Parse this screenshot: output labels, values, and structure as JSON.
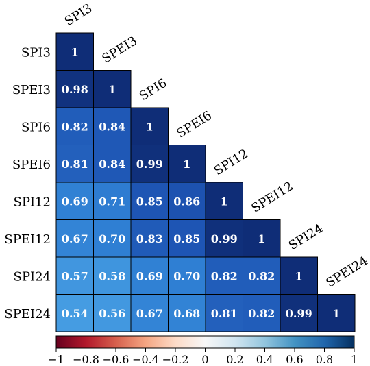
{
  "chart_data": {
    "type": "heatmap",
    "title": "",
    "variables": [
      "SPI3",
      "SPEI3",
      "SPI6",
      "SPEI6",
      "SPI12",
      "SPEI12",
      "SPI24",
      "SPEI24"
    ],
    "lower_triangle": [
      [
        "1"
      ],
      [
        "0.98",
        "1"
      ],
      [
        "0.82",
        "0.84",
        "1"
      ],
      [
        "0.81",
        "0.84",
        "0.99",
        "1"
      ],
      [
        "0.69",
        "0.71",
        "0.85",
        "0.86",
        "1"
      ],
      [
        "0.67",
        "0.70",
        "0.83",
        "0.85",
        "0.99",
        "1"
      ],
      [
        "0.57",
        "0.58",
        "0.69",
        "0.70",
        "0.82",
        "0.82",
        "1"
      ],
      [
        "0.54",
        "0.56",
        "0.67",
        "0.68",
        "0.81",
        "0.82",
        "0.99",
        "1"
      ]
    ],
    "colorbar": {
      "range": [
        -1,
        1
      ],
      "ticks": [
        "−1",
        "−0.8",
        "−0.6",
        "−0.4",
        "−0.2",
        "0",
        "0.2",
        "0.4",
        "0.6",
        "0.8",
        "1"
      ],
      "colors": [
        "#67001f",
        "#b2182b",
        "#d6604d",
        "#f4a582",
        "#fddbc7",
        "#f7f7f7",
        "#d1e5f0",
        "#92c5de",
        "#4393c3",
        "#2166ac",
        "#053061"
      ]
    },
    "cell_colors": {
      "high": "#0f2d77",
      "mid": "#1f5fc6",
      "low": "#3b8fd9"
    },
    "grid": false,
    "legend": "bottom"
  }
}
